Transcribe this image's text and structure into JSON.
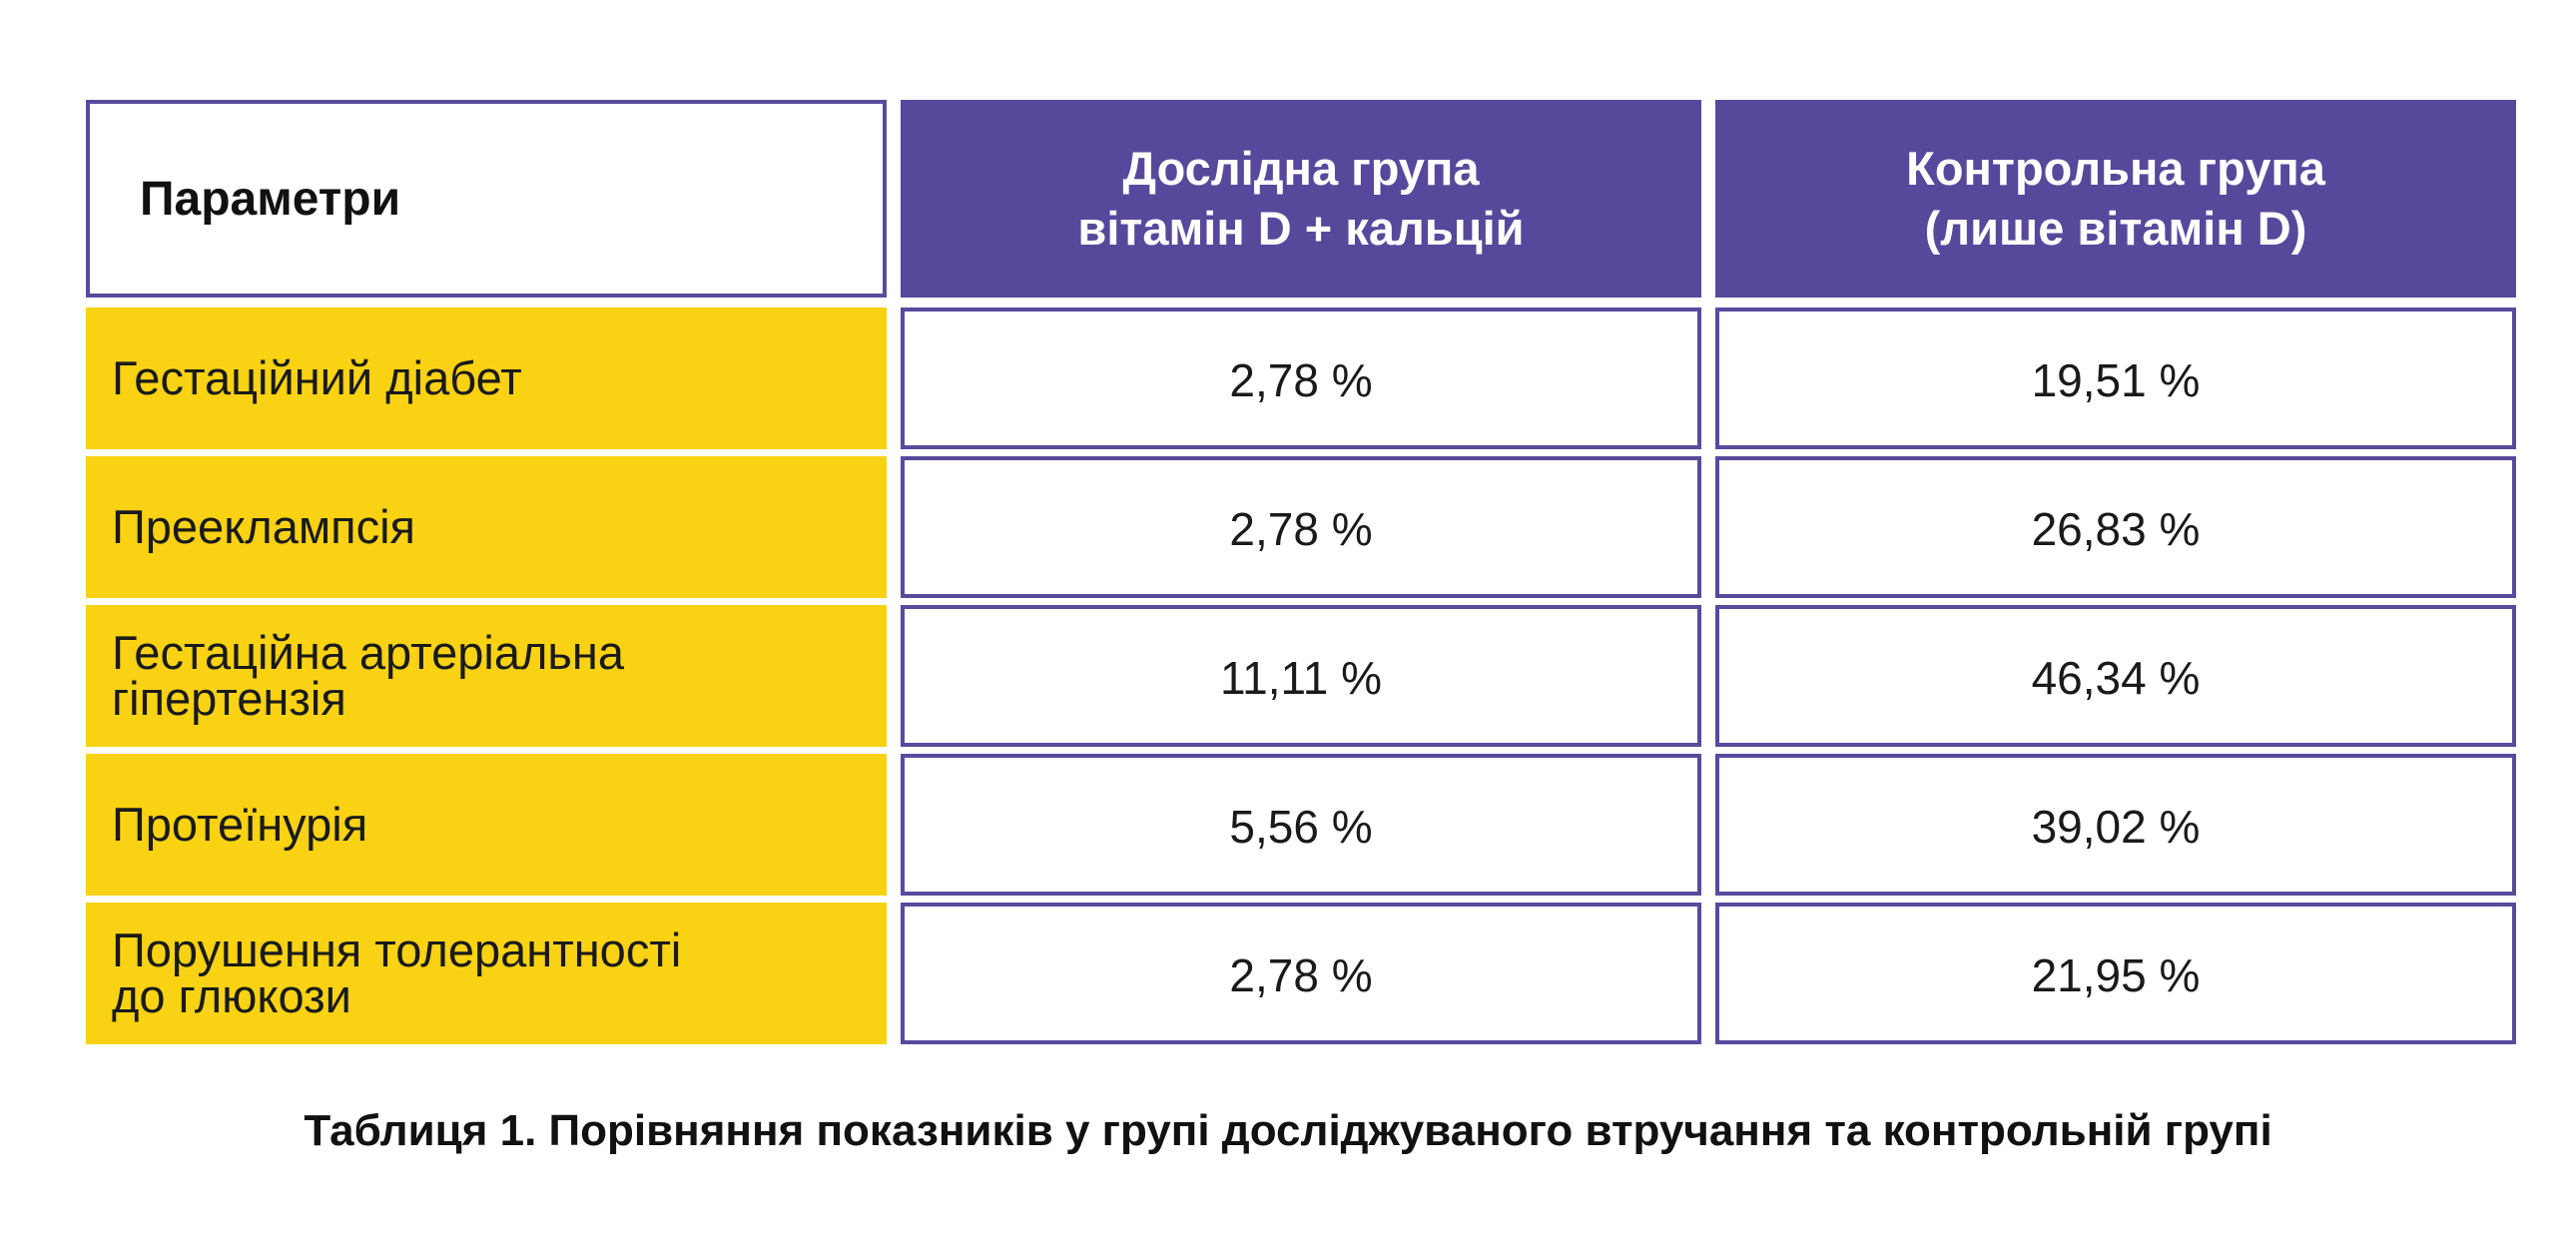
{
  "header": {
    "parameters": "Параметри",
    "study_group": [
      "Дослідна група",
      "вітамін D + кальцій"
    ],
    "control_group": [
      "Контрольна група",
      "(лише вітамін D)"
    ]
  },
  "rows": [
    {
      "label": [
        "Гестаційний діабет"
      ],
      "study": "2,78 %",
      "control": "19,51 %"
    },
    {
      "label": [
        "Прееклампсія"
      ],
      "study": "2,78 %",
      "control": "26,83 %"
    },
    {
      "label": [
        "Гестаційна артеріальна",
        "гіпертензія"
      ],
      "study": "11,11 %",
      "control": "46,34 %"
    },
    {
      "label": [
        "Протеїнурія"
      ],
      "study": "5,56 %",
      "control": "39,02 %"
    },
    {
      "label": [
        "Порушення толерантності",
        "до глюкози"
      ],
      "study": "2,78 %",
      "control": "21,95 %"
    }
  ],
  "caption": "Таблиця 1. Порівняння показників у групі досліджуваного втручання та контрольній групі",
  "colors": {
    "header_purple": "#58489b",
    "label_yellow": "#f8d213",
    "border_purple": "#5a4a9c"
  }
}
